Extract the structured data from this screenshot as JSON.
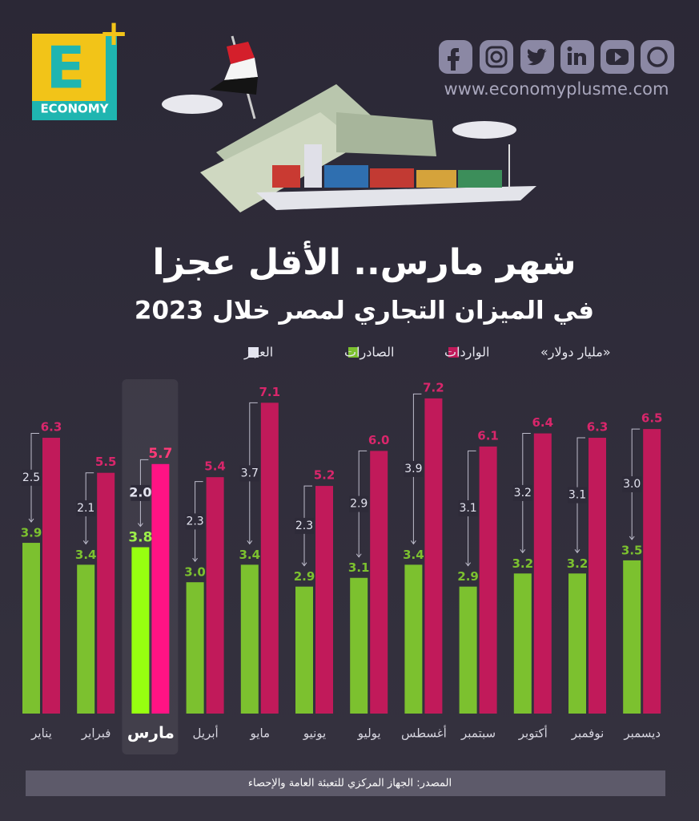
{
  "header": {
    "logo": {
      "letter": "E",
      "plus": "+",
      "name": "ECONOMY"
    },
    "website": "www.economyplusme.com"
  },
  "chart_data": {
    "type": "bar",
    "title": "شهر مارس.. الأقل عجزا",
    "subtitle": "في الميزان التجاري لمصر خلال 2023",
    "unit": "«مليار دولار»",
    "categories": [
      "يناير",
      "فبراير",
      "مارس",
      "أبريل",
      "مايو",
      "يونيو",
      "يوليو",
      "أغسطس",
      "سبتمبر",
      "أكتوبر",
      "نوفمبر",
      "ديسمبر"
    ],
    "series": [
      {
        "name": "الصادرات",
        "color": "#7cc12f",
        "values": [
          3.9,
          3.4,
          3.8,
          3,
          3.4,
          2.9,
          3.1,
          3.4,
          2.9,
          3.2,
          3.2,
          3.5
        ],
        "value_labels": [
          "3.9",
          "3.4",
          "3.8",
          "3.0",
          "3.4",
          "2.9",
          "3.1",
          "3.4",
          "2.9",
          "3.2",
          "3.2",
          "3.5"
        ]
      },
      {
        "name": "الواردات",
        "color": "#c11a5a",
        "values": [
          6.3,
          5.5,
          5.7,
          5.4,
          7.1,
          5.2,
          6,
          7.2,
          6.1,
          6.4,
          6.3,
          6.5
        ],
        "value_labels": [
          "6.3",
          "5.5",
          "5.7",
          "5.4",
          "7.1",
          "5.2",
          "6.0",
          "7.2",
          "6.1",
          "6.4",
          "6.3",
          "6.5"
        ]
      },
      {
        "name": "العجز",
        "color": "#e4e4f0",
        "values": [
          2.5,
          2.1,
          2,
          2.3,
          3.7,
          2.3,
          2.9,
          3.9,
          3.1,
          3.2,
          3.1,
          3
        ],
        "value_labels": [
          "2.5",
          "2.1",
          "2.0",
          "2.3",
          "3.7",
          "2.3",
          "2.9",
          "3.9",
          "3.1",
          "3.2",
          "3.1",
          "3.0"
        ]
      }
    ],
    "highlight": "مارس",
    "source": "المصدر: الجهاز المركزي للتعبئة العامة والإحصاء"
  }
}
